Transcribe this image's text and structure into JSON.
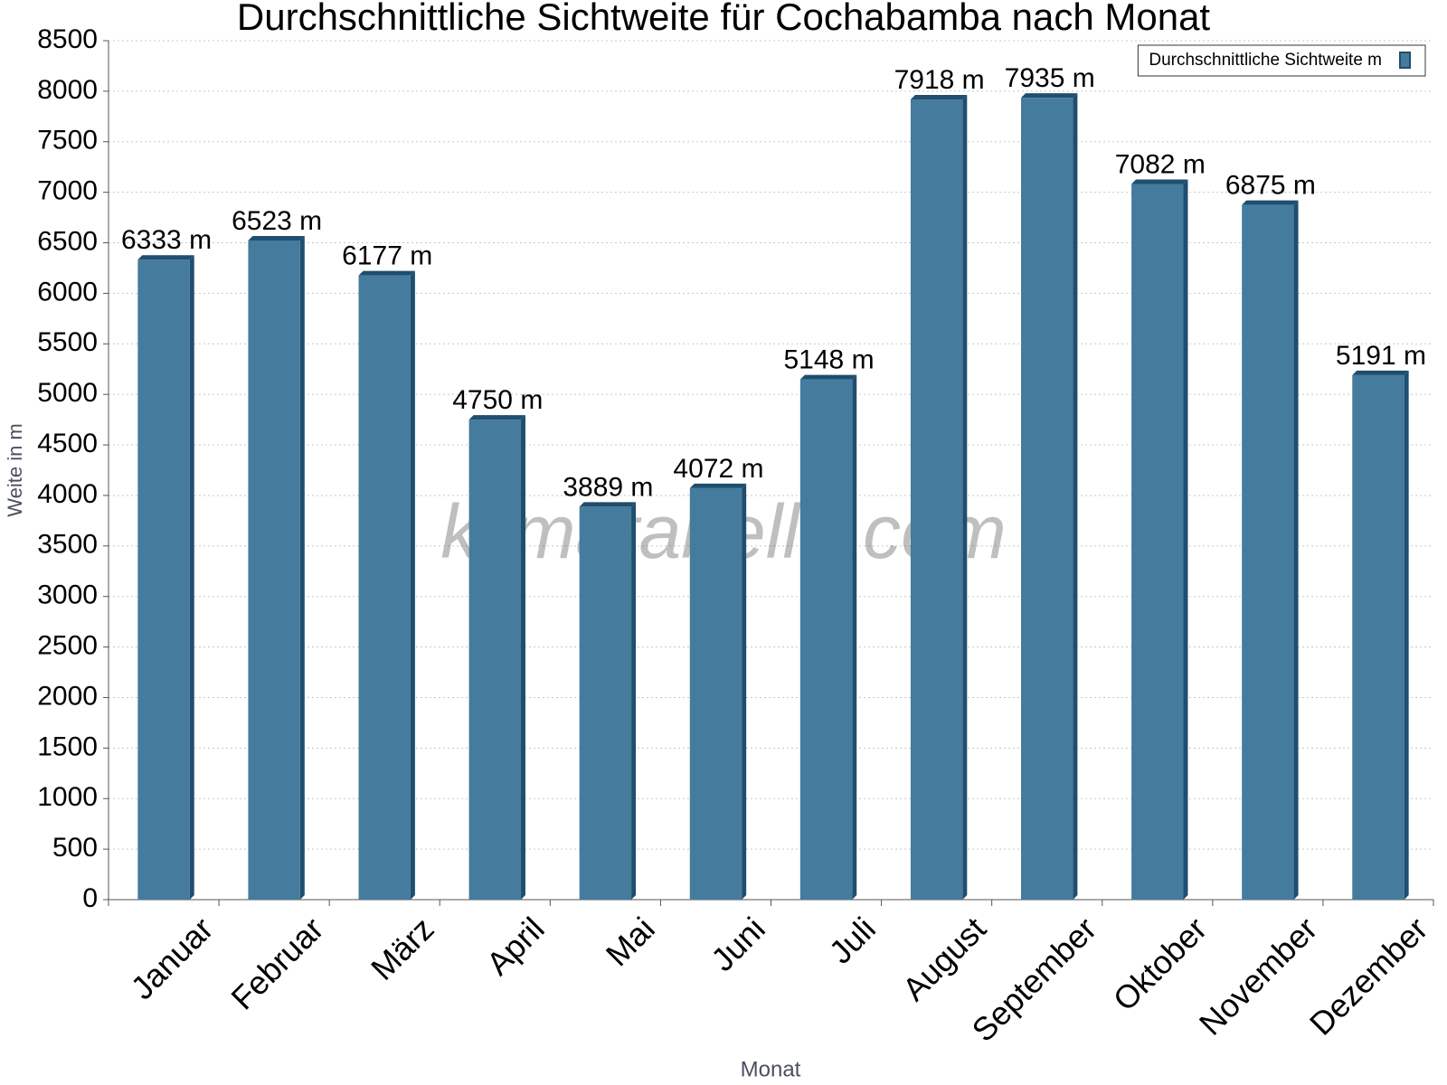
{
  "chart_data": {
    "type": "bar",
    "title": "Durchschnittliche Sichtweite für Cochabamba nach Monat",
    "x_label": "Monat",
    "y_label": "Weite in m",
    "watermark": "klimatabelle.com",
    "categories": [
      "Januar",
      "Februar",
      "März",
      "April",
      "Mai",
      "Juni",
      "Juli",
      "August",
      "September",
      "Oktober",
      "November",
      "Dezember"
    ],
    "series": [
      {
        "name": "Durchschnittliche Sichtweite m",
        "color": "#457b9d",
        "values": [
          6333,
          6523,
          6177,
          4750,
          3889,
          4072,
          5148,
          7918,
          7935,
          7082,
          6875,
          5191
        ],
        "value_labels": [
          "6333 m",
          "6523 m",
          "6177 m",
          "4750 m",
          "3889 m",
          "4072 m",
          "5148 m",
          "7918 m",
          "7935 m",
          "7082 m",
          "6875 m",
          "5191 m"
        ]
      }
    ],
    "ylim": [
      0,
      8500
    ],
    "yticks": [
      0,
      500,
      1000,
      1500,
      2000,
      2500,
      3000,
      3500,
      4000,
      4500,
      5000,
      5500,
      6000,
      6500,
      7000,
      7500,
      8000,
      8500
    ],
    "grid": true,
    "legend": "top-right"
  }
}
